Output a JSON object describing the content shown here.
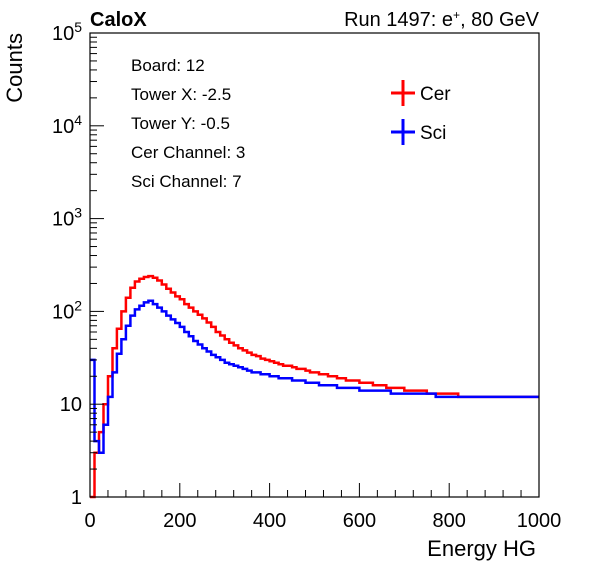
{
  "header": {
    "left": "CaloX",
    "right_prefix": "Run 1497: e",
    "right_sup": "+",
    "right_suffix": ", 80 GeV"
  },
  "info_lines": [
    "Board: 12",
    "Tower X: -2.5",
    "Tower Y: -0.5",
    "Cer Channel: 3",
    "Sci Channel: 7"
  ],
  "colors": {
    "cer": "#ff0000",
    "sci": "#0000ff",
    "axis": "#000000"
  },
  "chart_data": {
    "type": "line",
    "style": "histogram-step",
    "xlabel": "Energy HG",
    "ylabel": "Counts",
    "xlim": [
      0,
      1000
    ],
    "ylim": [
      1,
      100000
    ],
    "yscale": "log",
    "grid": false,
    "legend_position": "top-right",
    "x_ticks": [
      {
        "value": 0,
        "label": "0"
      },
      {
        "value": 200,
        "label": "200"
      },
      {
        "value": 400,
        "label": "400"
      },
      {
        "value": 600,
        "label": "600"
      },
      {
        "value": 800,
        "label": "800"
      },
      {
        "value": 1000,
        "label": "1000"
      }
    ],
    "y_ticks": [
      {
        "value": 1,
        "base": "1",
        "exp": ""
      },
      {
        "value": 10,
        "base": "10",
        "exp": ""
      },
      {
        "value": 100,
        "base": "10",
        "exp": "2"
      },
      {
        "value": 1000,
        "base": "10",
        "exp": "3"
      },
      {
        "value": 10000,
        "base": "10",
        "exp": "4"
      },
      {
        "value": 100000,
        "base": "10",
        "exp": "5"
      }
    ],
    "x": [
      0,
      10,
      20,
      30,
      40,
      50,
      60,
      70,
      80,
      90,
      100,
      110,
      120,
      130,
      140,
      150,
      160,
      170,
      180,
      190,
      200,
      210,
      220,
      230,
      240,
      250,
      260,
      270,
      280,
      290,
      300,
      310,
      320,
      330,
      340,
      350,
      360,
      370,
      380,
      390,
      400,
      410,
      420,
      430,
      440,
      450,
      460,
      470,
      480,
      490,
      500,
      510,
      520,
      530,
      540,
      550,
      560,
      570,
      580,
      590,
      600,
      610,
      620,
      630,
      640,
      650,
      660,
      670,
      680,
      690,
      700,
      710,
      720,
      730,
      740,
      750,
      760,
      770,
      780,
      790,
      800,
      810,
      820,
      830,
      840,
      850,
      860,
      870,
      880,
      890,
      900,
      910,
      920,
      930,
      940,
      950,
      960,
      970,
      980,
      990,
      1000
    ],
    "series": [
      {
        "name": "Cer",
        "color": "#ff0000",
        "values": [
          1,
          3,
          5,
          10,
          20,
          40,
          65,
          100,
          140,
          180,
          210,
          225,
          235,
          240,
          230,
          215,
          195,
          175,
          160,
          145,
          135,
          120,
          110,
          100,
          92,
          84,
          76,
          68,
          60,
          55,
          50,
          46,
          43,
          40,
          38,
          36,
          34,
          33,
          31,
          30,
          29,
          28,
          27,
          26,
          26,
          25,
          24,
          24,
          23,
          22,
          22,
          21,
          21,
          20,
          20,
          19,
          19,
          18,
          18,
          18,
          17,
          17,
          17,
          16,
          16,
          16,
          15,
          15,
          15,
          15,
          14,
          14,
          14,
          14,
          14,
          13,
          13,
          13,
          13,
          13,
          13,
          13,
          12,
          12,
          12,
          12,
          12,
          12,
          12,
          12,
          12,
          12,
          12,
          12,
          12,
          12,
          12,
          12,
          12,
          12,
          12
        ]
      },
      {
        "name": "Sci",
        "color": "#0000ff",
        "values": [
          30,
          4,
          3,
          6,
          12,
          22,
          35,
          50,
          70,
          90,
          105,
          115,
          125,
          130,
          120,
          110,
          100,
          90,
          82,
          75,
          68,
          60,
          54,
          48,
          44,
          40,
          37,
          34,
          32,
          30,
          28,
          27,
          26,
          25,
          24,
          23,
          22,
          22,
          21,
          21,
          20,
          20,
          19,
          19,
          19,
          18,
          18,
          18,
          17,
          17,
          17,
          16,
          16,
          16,
          16,
          15,
          15,
          15,
          15,
          15,
          14,
          14,
          14,
          14,
          14,
          14,
          14,
          13,
          13,
          13,
          13,
          13,
          13,
          13,
          13,
          13,
          13,
          12,
          12,
          12,
          12,
          12,
          12,
          12,
          12,
          12,
          12,
          12,
          12,
          12,
          12,
          12,
          12,
          12,
          12,
          12,
          12,
          12,
          12,
          12,
          12
        ]
      }
    ]
  }
}
